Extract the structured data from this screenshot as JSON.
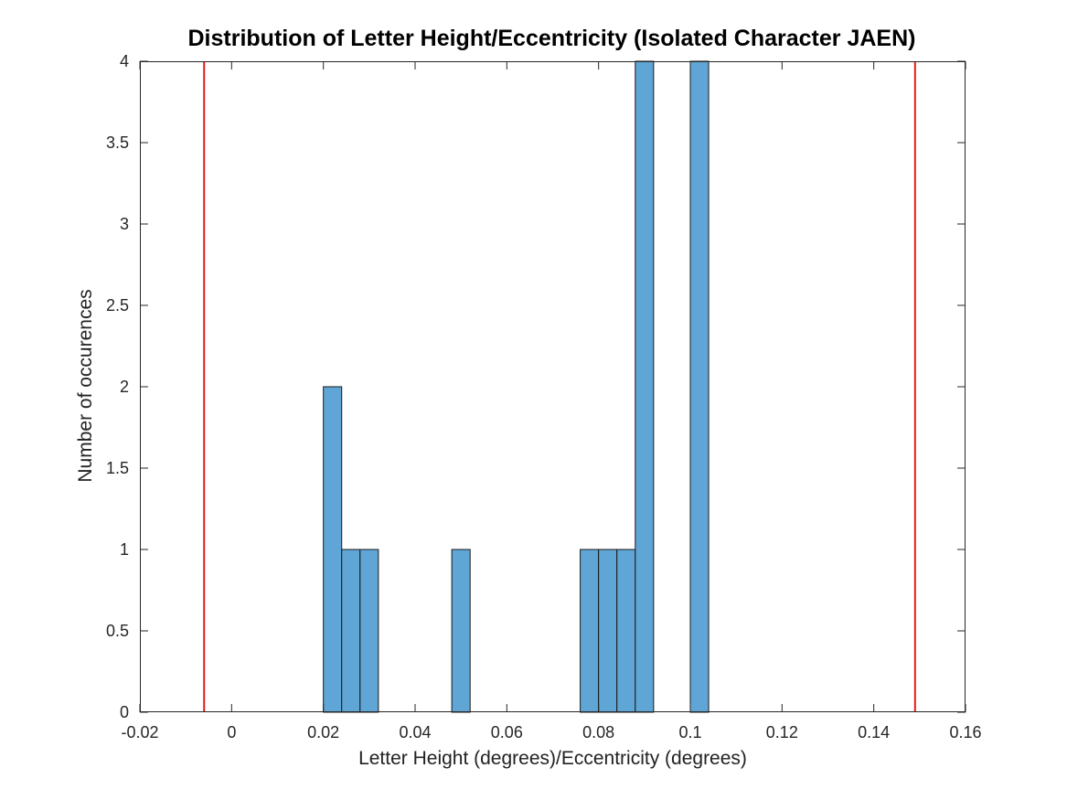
{
  "chart_data": {
    "type": "bar",
    "title": "Distribution of Letter Height/Eccentricity (Isolated Character JAEN)",
    "xlabel": "Letter Height (degrees)/Eccentricity (degrees)",
    "ylabel": "Number of occurences",
    "xlim": [
      -0.02,
      0.16
    ],
    "ylim": [
      0,
      4
    ],
    "xticks": [
      -0.02,
      0,
      0.02,
      0.04,
      0.06,
      0.08,
      0.1,
      0.12,
      0.14,
      0.16
    ],
    "xtick_labels": [
      "-0.02",
      "0",
      "0.02",
      "0.04",
      "0.06",
      "0.08",
      "0.1",
      "0.12",
      "0.14",
      "0.16"
    ],
    "yticks": [
      0,
      0.5,
      1,
      1.5,
      2,
      2.5,
      3,
      3.5,
      4
    ],
    "ytick_labels": [
      "0",
      "0.5",
      "1",
      "1.5",
      "2",
      "2.5",
      "3",
      "3.5",
      "4"
    ],
    "bin_edges": [
      0,
      0.004,
      0.008,
      0.012,
      0.016,
      0.02,
      0.024,
      0.028,
      0.032,
      0.036,
      0.04,
      0.044,
      0.048,
      0.052,
      0.056,
      0.06,
      0.064,
      0.068,
      0.072,
      0.076,
      0.08,
      0.084,
      0.088,
      0.092,
      0.096,
      0.1,
      0.104,
      0.108,
      0.112,
      0.116
    ],
    "counts": [
      0,
      0,
      0,
      0,
      0,
      2,
      1,
      1,
      0,
      0,
      0,
      0,
      1,
      0,
      0,
      0,
      0,
      0,
      0,
      1,
      1,
      1,
      4,
      0,
      0,
      4,
      0,
      0,
      0
    ],
    "vertical_lines": [
      -0.006,
      0.149
    ],
    "grid": false,
    "colors": {
      "bar_fill": "#5fa5d6",
      "bar_edge": "#1a1a1a",
      "reference_line": "#e8191c"
    }
  }
}
